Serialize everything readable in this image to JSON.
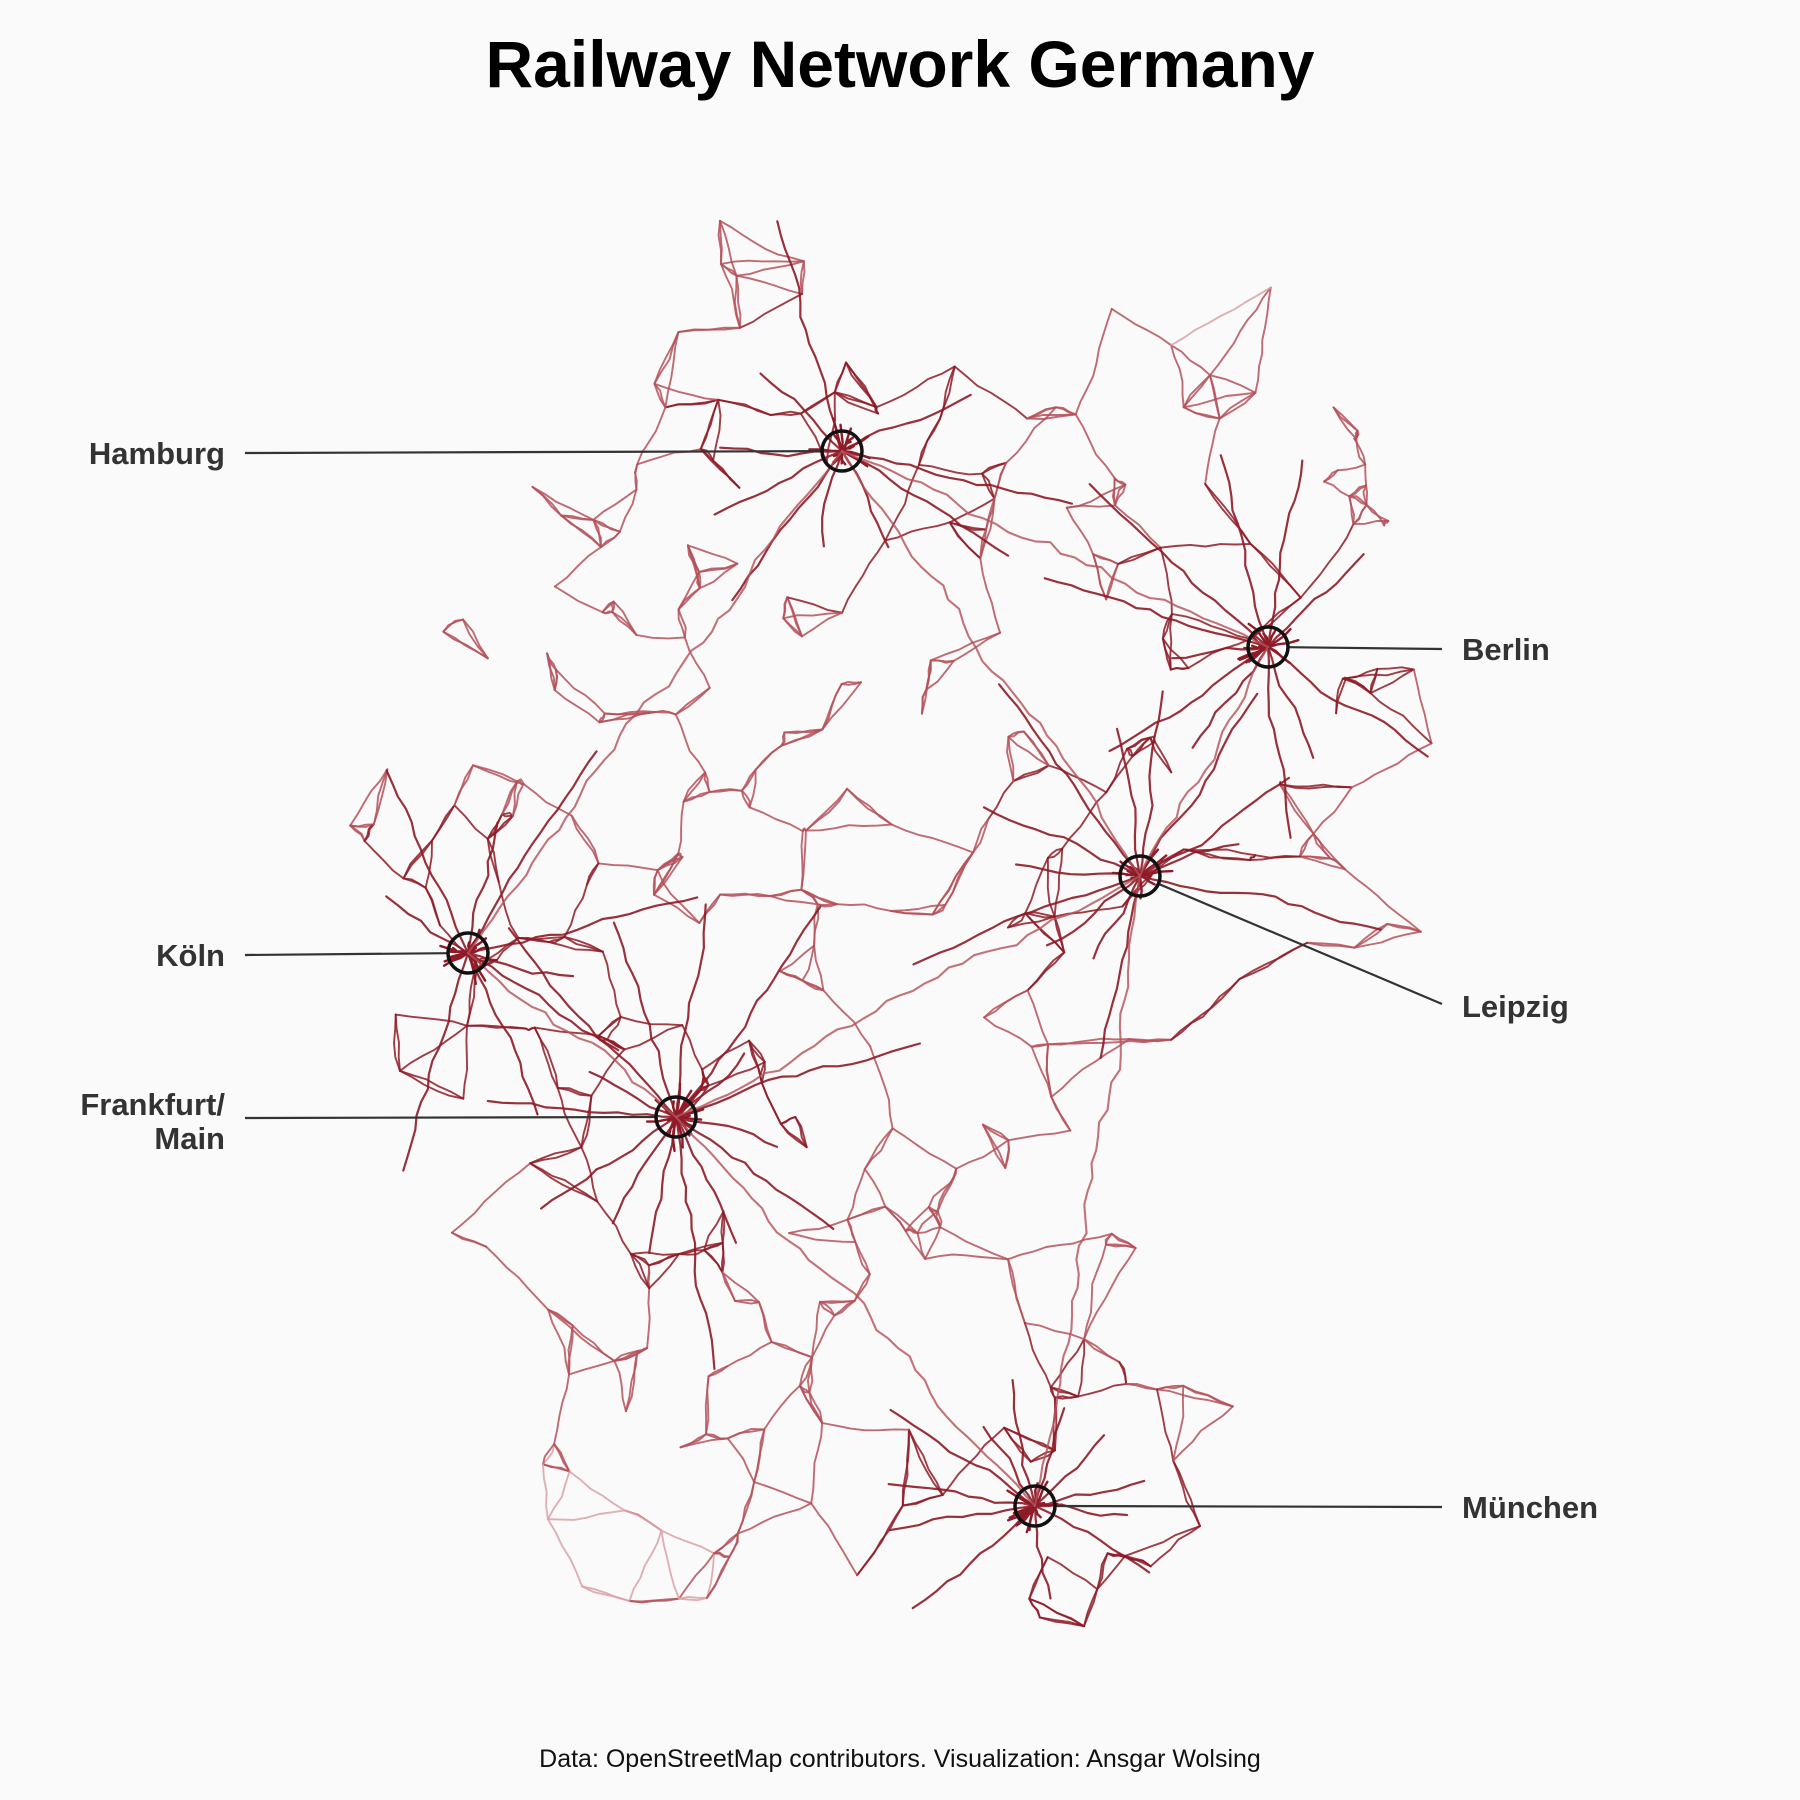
{
  "title": "Railway Network Germany",
  "caption": "Data: OpenStreetMap contributors. Visualization: Ansgar Wolsing",
  "colors": {
    "background": "#fafafa",
    "rail_dark": "#8e1b27",
    "rail_mid": "#b4515a",
    "rail_light": "#d9a2a6",
    "marker": "#111111",
    "label": "#333333"
  },
  "cities": [
    {
      "id": "hamburg",
      "lines": [
        "Hamburg"
      ]
    },
    {
      "id": "berlin",
      "lines": [
        "Berlin"
      ]
    },
    {
      "id": "koeln",
      "lines": [
        "Köln"
      ]
    },
    {
      "id": "leipzig",
      "lines": [
        "Leipzig"
      ]
    },
    {
      "id": "frankfurt",
      "lines": [
        "Frankfurt/",
        "Main"
      ]
    },
    {
      "id": "muenchen",
      "lines": [
        "München"
      ]
    }
  ]
}
